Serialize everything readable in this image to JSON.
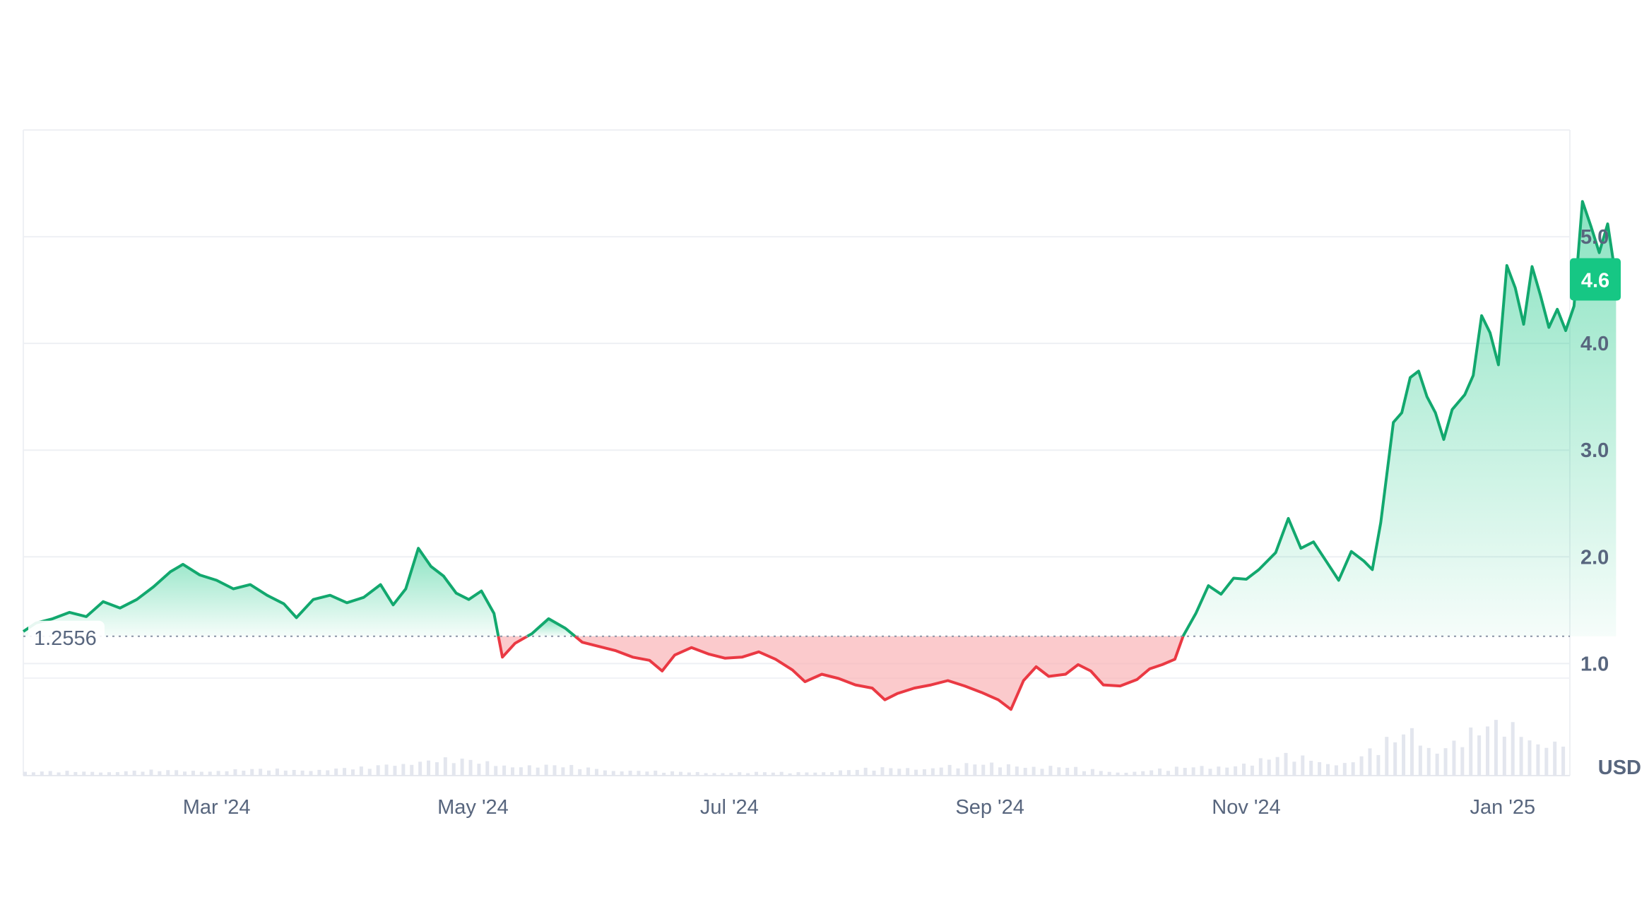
{
  "chart_data": {
    "type": "area",
    "x_labels": [
      "Mar '24",
      "May '24",
      "Jul '24",
      "Sep '24",
      "Nov '24",
      "Jan '25"
    ],
    "x_label_dates": [
      "2024-03-01",
      "2024-05-01",
      "2024-07-01",
      "2024-09-01",
      "2024-11-01",
      "2025-01-01"
    ],
    "x_range": [
      "2024-01-15",
      "2025-01-17"
    ],
    "y_ticks": [
      "1.0",
      "2.0",
      "3.0",
      "4.0",
      "5.0"
    ],
    "y_tick_values": [
      1,
      2,
      3,
      4,
      5
    ],
    "ylim": [
      -0.05,
      6.0
    ],
    "baseline": {
      "value": 1.2556,
      "label": "1.2556"
    },
    "current_price": {
      "value": 4.6,
      "label": "4.6"
    },
    "currency_label": "USD",
    "grid": true,
    "colors": {
      "up": "#16c784",
      "up_line": "#12a86e",
      "down": "#ea3943",
      "down_fill": "#f9b3b6",
      "axis_text": "#58667e",
      "volume": "#e3e6ee",
      "badge": "#16c784"
    },
    "series": [
      {
        "points": [
          [
            "2024-01-15",
            1.3
          ],
          [
            "2024-01-18",
            1.38
          ],
          [
            "2024-01-22",
            1.42
          ],
          [
            "2024-01-26",
            1.48
          ],
          [
            "2024-01-30",
            1.44
          ],
          [
            "2024-02-03",
            1.58
          ],
          [
            "2024-02-07",
            1.52
          ],
          [
            "2024-02-11",
            1.6
          ],
          [
            "2024-02-15",
            1.72
          ],
          [
            "2024-02-19",
            1.86
          ],
          [
            "2024-02-22",
            1.93
          ],
          [
            "2024-02-26",
            1.83
          ],
          [
            "2024-03-01",
            1.78
          ],
          [
            "2024-03-05",
            1.7
          ],
          [
            "2024-03-09",
            1.74
          ],
          [
            "2024-03-13",
            1.64
          ],
          [
            "2024-03-17",
            1.56
          ],
          [
            "2024-03-20",
            1.43
          ],
          [
            "2024-03-24",
            1.6
          ],
          [
            "2024-03-28",
            1.64
          ],
          [
            "2024-04-01",
            1.57
          ],
          [
            "2024-04-05",
            1.62
          ],
          [
            "2024-04-09",
            1.74
          ],
          [
            "2024-04-12",
            1.55
          ],
          [
            "2024-04-15",
            1.7
          ],
          [
            "2024-04-18",
            2.08
          ],
          [
            "2024-04-21",
            1.91
          ],
          [
            "2024-04-24",
            1.82
          ],
          [
            "2024-04-27",
            1.66
          ],
          [
            "2024-04-30",
            1.6
          ],
          [
            "2024-05-03",
            1.68
          ],
          [
            "2024-05-06",
            1.47
          ],
          [
            "2024-05-08",
            1.06
          ],
          [
            "2024-05-11",
            1.19
          ],
          [
            "2024-05-15",
            1.28
          ],
          [
            "2024-05-19",
            1.42
          ],
          [
            "2024-05-23",
            1.33
          ],
          [
            "2024-05-27",
            1.2
          ],
          [
            "2024-05-31",
            1.16
          ],
          [
            "2024-06-04",
            1.12
          ],
          [
            "2024-06-08",
            1.06
          ],
          [
            "2024-06-12",
            1.03
          ],
          [
            "2024-06-15",
            0.93
          ],
          [
            "2024-06-18",
            1.08
          ],
          [
            "2024-06-22",
            1.15
          ],
          [
            "2024-06-26",
            1.09
          ],
          [
            "2024-06-30",
            1.05
          ],
          [
            "2024-07-04",
            1.06
          ],
          [
            "2024-07-08",
            1.11
          ],
          [
            "2024-07-12",
            1.04
          ],
          [
            "2024-07-16",
            0.94
          ],
          [
            "2024-07-19",
            0.83
          ],
          [
            "2024-07-23",
            0.9
          ],
          [
            "2024-07-27",
            0.86
          ],
          [
            "2024-07-31",
            0.8
          ],
          [
            "2024-08-04",
            0.77
          ],
          [
            "2024-08-07",
            0.66
          ],
          [
            "2024-08-10",
            0.72
          ],
          [
            "2024-08-14",
            0.77
          ],
          [
            "2024-08-18",
            0.8
          ],
          [
            "2024-08-22",
            0.84
          ],
          [
            "2024-08-26",
            0.79
          ],
          [
            "2024-08-30",
            0.73
          ],
          [
            "2024-09-03",
            0.66
          ],
          [
            "2024-09-06",
            0.57
          ],
          [
            "2024-09-09",
            0.84
          ],
          [
            "2024-09-12",
            0.97
          ],
          [
            "2024-09-15",
            0.88
          ],
          [
            "2024-09-19",
            0.9
          ],
          [
            "2024-09-22",
            0.99
          ],
          [
            "2024-09-25",
            0.93
          ],
          [
            "2024-09-28",
            0.8
          ],
          [
            "2024-10-02",
            0.79
          ],
          [
            "2024-10-06",
            0.85
          ],
          [
            "2024-10-09",
            0.95
          ],
          [
            "2024-10-12",
            0.99
          ],
          [
            "2024-10-15",
            1.04
          ],
          [
            "2024-10-17",
            1.26
          ],
          [
            "2024-10-20",
            1.47
          ],
          [
            "2024-10-23",
            1.73
          ],
          [
            "2024-10-26",
            1.65
          ],
          [
            "2024-10-29",
            1.8
          ],
          [
            "2024-11-01",
            1.79
          ],
          [
            "2024-11-04",
            1.88
          ],
          [
            "2024-11-08",
            2.04
          ],
          [
            "2024-11-11",
            2.36
          ],
          [
            "2024-11-14",
            2.08
          ],
          [
            "2024-11-17",
            2.14
          ],
          [
            "2024-11-20",
            1.96
          ],
          [
            "2024-11-23",
            1.78
          ],
          [
            "2024-11-26",
            2.05
          ],
          [
            "2024-11-29",
            1.96
          ],
          [
            "2024-12-01",
            1.88
          ],
          [
            "2024-12-03",
            2.32
          ],
          [
            "2024-12-06",
            3.26
          ],
          [
            "2024-12-08",
            3.35
          ],
          [
            "2024-12-10",
            3.68
          ],
          [
            "2024-12-12",
            3.74
          ],
          [
            "2024-12-14",
            3.5
          ],
          [
            "2024-12-16",
            3.35
          ],
          [
            "2024-12-18",
            3.1
          ],
          [
            "2024-12-20",
            3.38
          ],
          [
            "2024-12-23",
            3.52
          ],
          [
            "2024-12-25",
            3.7
          ],
          [
            "2024-12-27",
            4.26
          ],
          [
            "2024-12-29",
            4.1
          ],
          [
            "2024-12-31",
            3.8
          ],
          [
            "2025-01-02",
            4.73
          ],
          [
            "2025-01-04",
            4.52
          ],
          [
            "2025-01-06",
            4.18
          ],
          [
            "2025-01-08",
            4.72
          ],
          [
            "2025-01-10",
            4.45
          ],
          [
            "2025-01-12",
            4.15
          ],
          [
            "2025-01-14",
            4.32
          ],
          [
            "2025-01-16",
            4.12
          ],
          [
            "2025-01-18",
            4.35
          ],
          [
            "2025-01-20",
            5.33
          ],
          [
            "2025-01-22",
            5.1
          ],
          [
            "2025-01-24",
            4.85
          ],
          [
            "2025-01-26",
            5.12
          ],
          [
            "2025-01-28",
            4.6
          ]
        ]
      }
    ],
    "volume": {
      "scale": [
        0,
        1
      ],
      "points": [
        [
          "2024-01-15",
          0.06
        ],
        [
          "2024-02-15",
          0.08
        ],
        [
          "2024-03-15",
          0.1
        ],
        [
          "2024-04-05",
          0.12
        ],
        [
          "2024-04-18",
          0.28
        ],
        [
          "2024-05-08",
          0.2
        ],
        [
          "2024-06-15",
          0.06
        ],
        [
          "2024-07-15",
          0.05
        ],
        [
          "2024-08-07",
          0.12
        ],
        [
          "2024-09-06",
          0.2
        ],
        [
          "2024-10-01",
          0.06
        ],
        [
          "2024-10-20",
          0.14
        ],
        [
          "2024-11-01",
          0.22
        ],
        [
          "2024-11-11",
          0.32
        ],
        [
          "2024-11-25",
          0.22
        ],
        [
          "2024-12-06",
          0.58
        ],
        [
          "2024-12-10",
          0.78
        ],
        [
          "2024-12-16",
          0.5
        ],
        [
          "2024-12-27",
          0.72
        ],
        [
          "2025-01-02",
          0.86
        ],
        [
          "2025-01-08",
          0.74
        ],
        [
          "2025-01-14",
          0.52
        ],
        [
          "2025-01-20",
          0.68
        ],
        [
          "2025-01-28",
          0.4
        ]
      ]
    }
  }
}
